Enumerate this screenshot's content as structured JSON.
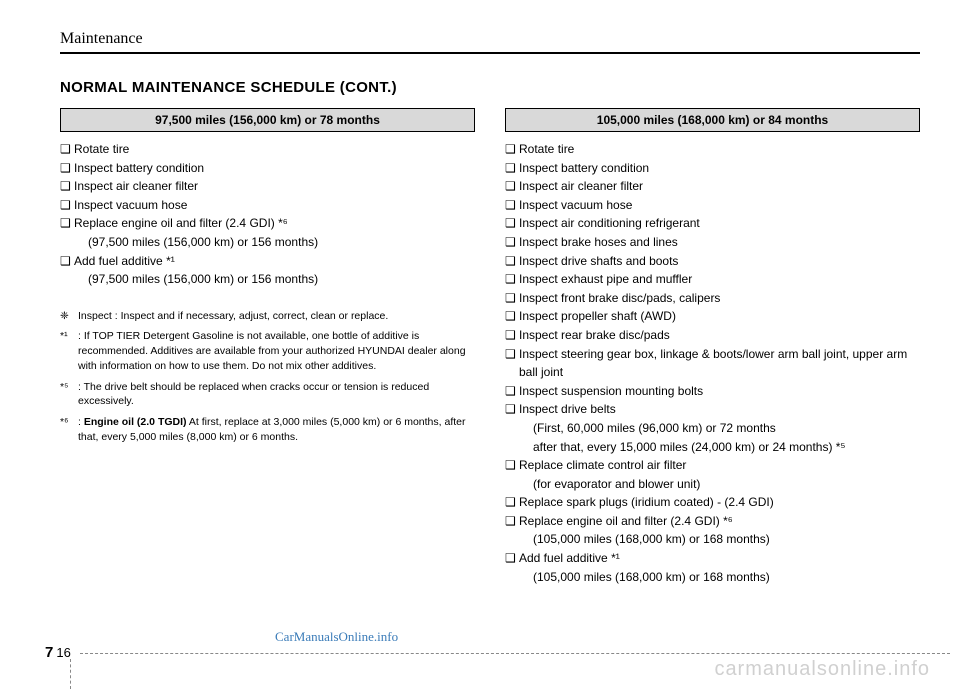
{
  "section_label": "Maintenance",
  "title": "NORMAL MAINTENANCE SCHEDULE (CONT.)",
  "left": {
    "header": "97,500 miles (156,000 km) or 78 months",
    "items": [
      {
        "bullet": "❑",
        "text": "Rotate tire"
      },
      {
        "bullet": "❑",
        "text": "Inspect battery condition"
      },
      {
        "bullet": "❑",
        "text": "Inspect air cleaner filter"
      },
      {
        "bullet": "❑",
        "text": "Inspect vacuum hose"
      },
      {
        "bullet": "❑",
        "text": "Replace engine oil and filter (2.4 GDI) *⁶"
      },
      {
        "bullet": "",
        "text": "(97,500 miles (156,000 km) or 156 months)",
        "indent": true
      },
      {
        "bullet": "❑",
        "text": "Add fuel additive *¹"
      },
      {
        "bullet": "",
        "text": "(97,500 miles (156,000 km) or 156 months)",
        "indent": true
      }
    ]
  },
  "right": {
    "header": "105,000 miles (168,000 km) or 84 months",
    "items": [
      {
        "bullet": "❑",
        "text": "Rotate tire"
      },
      {
        "bullet": "❑",
        "text": "Inspect battery condition"
      },
      {
        "bullet": "❑",
        "text": "Inspect air cleaner filter"
      },
      {
        "bullet": "❑",
        "text": "Inspect vacuum hose"
      },
      {
        "bullet": "❑",
        "text": "Inspect air conditioning refrigerant"
      },
      {
        "bullet": "❑",
        "text": "Inspect brake hoses and lines"
      },
      {
        "bullet": "❑",
        "text": "Inspect drive shafts and boots"
      },
      {
        "bullet": "❑",
        "text": "Inspect exhaust pipe and muffler"
      },
      {
        "bullet": "❑",
        "text": "Inspect front brake disc/pads, calipers"
      },
      {
        "bullet": "❑",
        "text": "Inspect propeller shaft (AWD)"
      },
      {
        "bullet": "❑",
        "text": "Inspect rear brake disc/pads"
      },
      {
        "bullet": "❑",
        "text": "Inspect steering gear box, linkage & boots/lower arm ball joint, upper arm ball joint"
      },
      {
        "bullet": "❑",
        "text": "Inspect suspension mounting bolts"
      },
      {
        "bullet": "❑",
        "text": "Inspect drive belts"
      },
      {
        "bullet": "",
        "text": "(First, 60,000 miles (96,000 km) or 72 months",
        "indent": true
      },
      {
        "bullet": "",
        "text": " after that, every 15,000 miles (24,000 km) or 24 months) *⁵",
        "indent": true
      },
      {
        "bullet": "❑",
        "text": "Replace climate control air filter"
      },
      {
        "bullet": "",
        "text": "(for evaporator and blower unit)",
        "indent": true
      },
      {
        "bullet": "❑",
        "text": "Replace spark plugs (iridium coated) - (2.4 GDI)"
      },
      {
        "bullet": "❑",
        "text": "Replace engine oil and filter (2.4 GDI) *⁶"
      },
      {
        "bullet": "",
        "text": "(105,000 miles (168,000 km) or 168 months)",
        "indent": true
      },
      {
        "bullet": "❑",
        "text": "Add fuel additive *¹"
      },
      {
        "bullet": "",
        "text": "(105,000 miles (168,000 km) or 168 months)",
        "indent": true
      }
    ]
  },
  "footnotes": [
    {
      "mark": "❈",
      "text": "Inspect : Inspect and if necessary, adjust, correct, clean or replace."
    },
    {
      "mark": "*¹",
      "text": ": If TOP TIER Detergent Gasoline is not available, one bottle of additive is recommended. Additives are available from your authorized HYUNDAI dealer along with information on how to use them. Do not mix other additives."
    },
    {
      "mark": "*⁵",
      "text": ": The drive belt should be replaced when cracks occur or tension is reduced excessively."
    },
    {
      "mark": "*⁶",
      "text": ": <b>Engine oil (2.0 TGDI)</b> At first, replace at 3,000 miles (5,000 km) or 6 months, after that, every 5,000 miles (8,000 km) or 6 months."
    }
  ],
  "page_chapter": "7",
  "page_number": "16",
  "watermark1": "CarManualsOnline.info",
  "watermark2": "carmanualsonline.info"
}
